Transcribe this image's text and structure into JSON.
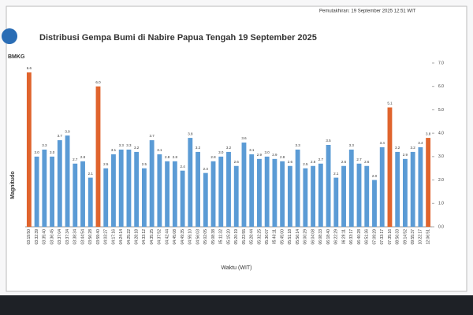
{
  "chart_data": {
    "type": "bar",
    "logo": "BMKG",
    "title": "Distribusi Gempa Bumi di Nabire Papua Tengah 19  September 2025",
    "subtitle": "Pemutakhiran: 19 September 2025 12:51 WIT",
    "ylabel": "Magnitudo",
    "xlabel": "Waktu (WIT)",
    "categories": [
      "03:19:50",
      "03:32:39",
      "03:35:40",
      "03:36:45",
      "03:37:04",
      "03:37:34",
      "03:38:34",
      "03:44:54",
      "03:56:28",
      "03:59:40",
      "04:03:27",
      "04:17:16",
      "04:24:14",
      "04:25:22",
      "04:28:18",
      "04:33:12",
      "04:35:25",
      "04:37:52",
      "04:42:44",
      "04:45:08",
      "04:49:35",
      "04:55:10",
      "04:56:03",
      "05:02:05",
      "05:08:38",
      "05:11:32",
      "05:15:20",
      "05:20:19",
      "05:22:55",
      "05:28:44",
      "05:32:25",
      "05:36:07",
      "05:40:11",
      "05:45:00",
      "05:51:18",
      "05:56:14",
      "06:00:29",
      "06:04:08",
      "06:08:33",
      "06:18:40",
      "06:22:29",
      "06:29:11",
      "06:33:17",
      "06:40:28",
      "06:51:36",
      "07:09:29",
      "07:33:17",
      "07:35:16",
      "08:56:33",
      "09:14:52",
      "09:55:37",
      "10:22:17",
      "12:06:51"
    ],
    "values": [
      6.6,
      3.0,
      3.3,
      3.0,
      3.7,
      3.9,
      2.7,
      2.8,
      2.1,
      6.0,
      2.5,
      3.1,
      3.3,
      3.3,
      3.2,
      2.5,
      3.7,
      3.1,
      2.8,
      2.8,
      2.4,
      3.8,
      3.2,
      2.3,
      2.8,
      3.0,
      3.2,
      2.6,
      3.6,
      3.1,
      2.9,
      3.0,
      2.9,
      2.8,
      2.6,
      3.3,
      2.5,
      2.6,
      2.7,
      3.5,
      2.1,
      2.6,
      3.3,
      2.7,
      2.6,
      2.0,
      3.4,
      5.1,
      3.2,
      2.9,
      3.2,
      3.4,
      3.8
    ],
    "value_labels": [
      "6.6",
      "3.0",
      "3.3",
      "3.0",
      "3.7",
      "3.9",
      "2.7",
      "2.8",
      "2.1",
      "6.0",
      "2.5",
      "3.1",
      "3.3",
      "3.3",
      "3.2",
      "2.5",
      "3.7",
      "3.1",
      "2.8",
      "2.8",
      "2.4",
      "3.8",
      "3.2",
      "2.3",
      "2.8",
      "3.0",
      "3.2",
      "2.6",
      "3.6",
      "3.1",
      "2.9",
      "3.0",
      "2.9",
      "2.8",
      "2.6",
      "3.3",
      "2.5",
      "2.6",
      "2.7",
      "3.5",
      "2.1",
      "2.6",
      "3.3",
      "2.7",
      "2.6",
      "2.0",
      "3.4",
      "5.1",
      "3.2",
      "2.9",
      "3.2",
      "3.4",
      "3.8"
    ],
    "colors": [
      "#e0642d",
      "#5b9bd5",
      "#5b9bd5",
      "#5b9bd5",
      "#5b9bd5",
      "#5b9bd5",
      "#5b9bd5",
      "#5b9bd5",
      "#5b9bd5",
      "#e0642d",
      "#5b9bd5",
      "#5b9bd5",
      "#5b9bd5",
      "#5b9bd5",
      "#5b9bd5",
      "#5b9bd5",
      "#5b9bd5",
      "#5b9bd5",
      "#5b9bd5",
      "#5b9bd5",
      "#5b9bd5",
      "#5b9bd5",
      "#5b9bd5",
      "#5b9bd5",
      "#5b9bd5",
      "#5b9bd5",
      "#5b9bd5",
      "#5b9bd5",
      "#5b9bd5",
      "#5b9bd5",
      "#5b9bd5",
      "#5b9bd5",
      "#5b9bd5",
      "#5b9bd5",
      "#5b9bd5",
      "#5b9bd5",
      "#5b9bd5",
      "#5b9bd5",
      "#5b9bd5",
      "#5b9bd5",
      "#5b9bd5",
      "#5b9bd5",
      "#5b9bd5",
      "#5b9bd5",
      "#5b9bd5",
      "#5b9bd5",
      "#5b9bd5",
      "#e0642d",
      "#5b9bd5",
      "#5b9bd5",
      "#5b9bd5",
      "#5b9bd5",
      "#e0642d"
    ],
    "ylim": [
      0,
      7
    ],
    "yticks": [
      {
        "value": 0,
        "label": "0.0"
      },
      {
        "value": 1,
        "label": "1.0"
      },
      {
        "value": 2,
        "label": "2.0"
      },
      {
        "value": 3,
        "label": "3.0"
      },
      {
        "value": 4,
        "label": "4.0"
      },
      {
        "value": 5,
        "label": "5.0"
      },
      {
        "value": 6,
        "label": "6.0"
      },
      {
        "value": 7,
        "label": "7.0"
      }
    ],
    "grid": false
  }
}
